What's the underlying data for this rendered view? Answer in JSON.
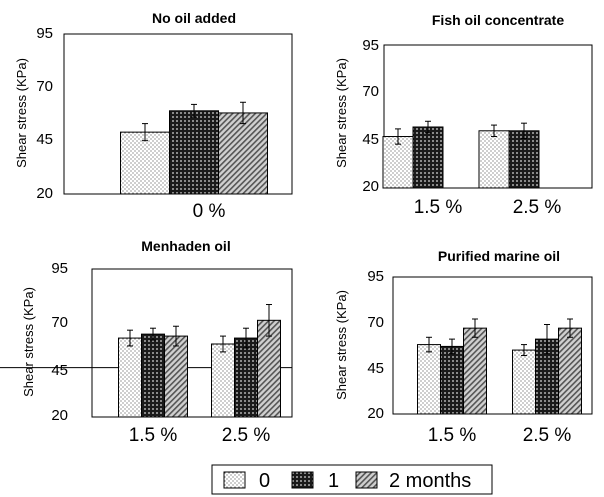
{
  "chart_data": [
    {
      "type": "bar",
      "title": "No oil added",
      "ylabel": "Shear stress (KPa)",
      "ylim": [
        20,
        95
      ],
      "yticks": [
        "20",
        "45",
        "70",
        "95"
      ],
      "categories": [
        "0 %"
      ],
      "series": [
        {
          "name": "0",
          "values": [
            49
          ],
          "errors": [
            4
          ]
        },
        {
          "name": "1",
          "values": [
            59
          ],
          "errors": [
            3
          ]
        },
        {
          "name": "2 months",
          "values": [
            58
          ],
          "errors": [
            5
          ]
        }
      ],
      "grid": false
    },
    {
      "type": "bar",
      "title": "Fish oil concentrate",
      "ylabel": "Shear stress (KPa)",
      "ylim": [
        20,
        95
      ],
      "yticks": [
        "20",
        "45",
        "70",
        "95"
      ],
      "categories": [
        "1.5 %",
        "2.5 %"
      ],
      "series": [
        {
          "name": "0",
          "values": [
            47,
            50
          ],
          "errors": [
            4,
            3
          ]
        },
        {
          "name": "1",
          "values": [
            52,
            50
          ],
          "errors": [
            3,
            4
          ]
        },
        {
          "name": "2 months",
          "values": [
            null,
            null
          ],
          "errors": [
            null,
            null
          ]
        }
      ],
      "grid": false
    },
    {
      "type": "bar",
      "title": "Menhaden oil",
      "ylabel": "Shear stress (KPa)",
      "ylim": [
        20,
        95
      ],
      "yticks": [
        "20",
        "45",
        "70",
        "95"
      ],
      "categories": [
        "1.5 %",
        "2.5 %"
      ],
      "series": [
        {
          "name": "0",
          "values": [
            60,
            57
          ],
          "errors": [
            4,
            4
          ]
        },
        {
          "name": "1",
          "values": [
            62,
            60
          ],
          "errors": [
            3,
            5
          ]
        },
        {
          "name": "2 months",
          "values": [
            61,
            69
          ],
          "errors": [
            5,
            8
          ]
        }
      ],
      "reference_line": 45,
      "grid": false
    },
    {
      "type": "bar",
      "title": "Purified marine oil",
      "ylabel": "Shear stress (KPa)",
      "ylim": [
        20,
        95
      ],
      "yticks": [
        "20",
        "45",
        "70",
        "95"
      ],
      "categories": [
        "1.5 %",
        "2.5 %"
      ],
      "series": [
        {
          "name": "0",
          "values": [
            58,
            55
          ],
          "errors": [
            4,
            3
          ]
        },
        {
          "name": "1",
          "values": [
            57,
            61
          ],
          "errors": [
            4,
            8
          ]
        },
        {
          "name": "2 months",
          "values": [
            67,
            67
          ],
          "errors": [
            5,
            5
          ]
        }
      ],
      "grid": false
    }
  ],
  "legend": {
    "position": "bottom-center",
    "items": [
      {
        "label": "0",
        "pattern": "dots"
      },
      {
        "label": "1",
        "pattern": "grid"
      },
      {
        "label": "2 months",
        "pattern": "diagonal"
      }
    ]
  },
  "colors": {
    "bar_edge": "#000000",
    "background": "#ffffff",
    "fill_dark": "#1a1a1a",
    "fill_mid": "#666666"
  }
}
